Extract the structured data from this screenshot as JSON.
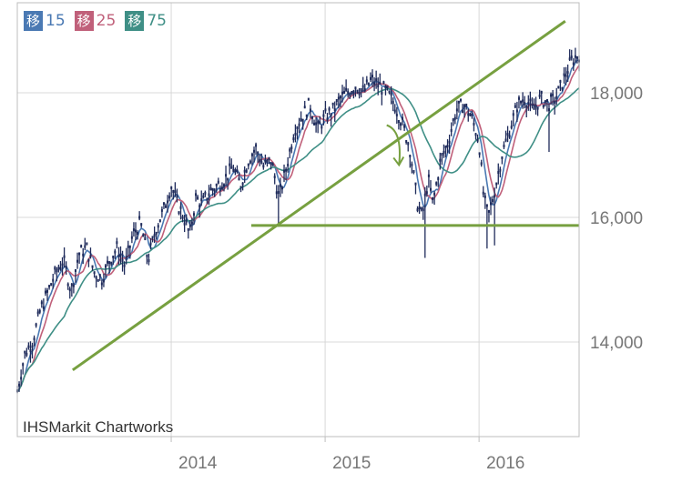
{
  "legend": {
    "items": [
      {
        "badge": "移",
        "period": "15",
        "color": "#4a79b3"
      },
      {
        "badge": "移",
        "period": "25",
        "color": "#c0607a"
      },
      {
        "badge": "移",
        "period": "75",
        "color": "#3f8f86"
      }
    ]
  },
  "credit": "IHSMarkit Chartworks",
  "chart_data": {
    "type": "line",
    "x_ticks": [
      "2014",
      "2015",
      "2016"
    ],
    "y_ticks": [
      "14,000",
      "16,000",
      "18,000"
    ],
    "y_tick_values": [
      14000,
      16000,
      18000
    ],
    "ylim": [
      12500,
      19500
    ],
    "xlim": [
      2013.0,
      2016.65
    ],
    "grid": true,
    "price_color": "#1e2a5a",
    "trendline_color": "#77a040",
    "price_series": {
      "x": [
        2013.0,
        2013.05,
        2013.1,
        2013.15,
        2013.2,
        2013.25,
        2013.3,
        2013.35,
        2013.4,
        2013.45,
        2013.5,
        2013.55,
        2013.6,
        2013.65,
        2013.7,
        2013.75,
        2013.8,
        2013.85,
        2013.9,
        2013.95,
        2014.0,
        2014.04,
        2014.08,
        2014.12,
        2014.16,
        2014.2,
        2014.25,
        2014.3,
        2014.35,
        2014.4,
        2014.45,
        2014.5,
        2014.55,
        2014.6,
        2014.65,
        2014.7,
        2014.75,
        2014.8,
        2014.85,
        2014.9,
        2014.95,
        2015.0,
        2015.05,
        2015.1,
        2015.15,
        2015.2,
        2015.25,
        2015.3,
        2015.35,
        2015.4,
        2015.45,
        2015.5,
        2015.55,
        2015.6,
        2015.63,
        2015.67,
        2015.7,
        2015.75,
        2015.8,
        2015.85,
        2015.9,
        2015.95,
        2016.0,
        2016.03,
        2016.06,
        2016.1,
        2016.15,
        2016.2,
        2016.25,
        2016.3,
        2016.35,
        2016.4,
        2016.45,
        2016.5,
        2016.55,
        2016.6,
        2016.65
      ],
      "y": [
        13200,
        13800,
        14000,
        14500,
        14800,
        15100,
        15300,
        14800,
        15400,
        15500,
        15100,
        15000,
        15300,
        15500,
        15200,
        15700,
        15900,
        15300,
        15800,
        16100,
        16500,
        16200,
        16000,
        15700,
        16300,
        16200,
        16400,
        16500,
        16600,
        16800,
        16500,
        16900,
        17100,
        16800,
        16900,
        16300,
        16800,
        17400,
        17600,
        17800,
        17400,
        17600,
        17700,
        17900,
        18000,
        18100,
        18000,
        18200,
        18100,
        18000,
        17800,
        17500,
        17100,
        16200,
        16000,
        16600,
        16200,
        16900,
        17200,
        17700,
        17800,
        17600,
        17200,
        16300,
        16000,
        16400,
        17000,
        17400,
        17800,
        17900,
        17700,
        17900,
        17800,
        17900,
        18200,
        18500,
        18600
      ]
    },
    "series": [
      {
        "name": "15",
        "color": "#4a79b3"
      },
      {
        "name": "25",
        "color": "#c0607a"
      },
      {
        "name": "75",
        "color": "#3f8f86"
      }
    ],
    "annotations": [
      {
        "kind": "trendline",
        "x": [
          2013.36,
          2016.56
        ],
        "y": [
          13550,
          19150
        ]
      },
      {
        "kind": "trendline",
        "x": [
          2014.52,
          2016.65
        ],
        "y": [
          15870,
          15870
        ]
      },
      {
        "kind": "arrow",
        "x": [
          2015.4,
          2015.48
        ],
        "y": [
          17480,
          16840
        ]
      }
    ]
  }
}
